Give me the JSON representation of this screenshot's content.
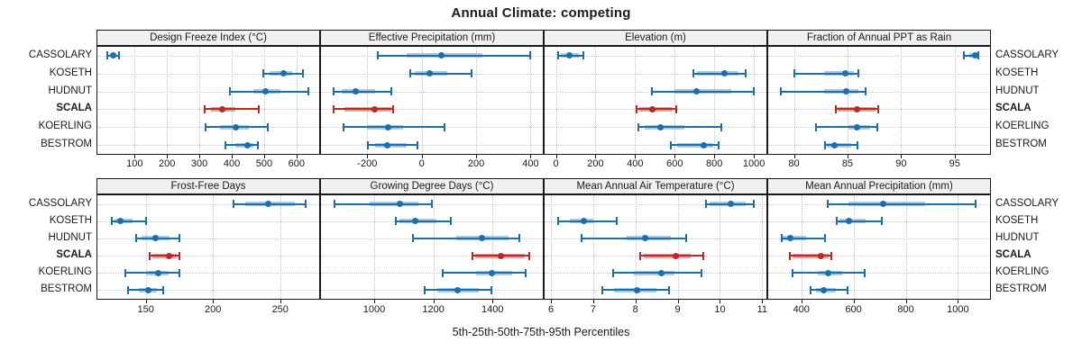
{
  "title": "Annual Climate: competing",
  "xlabel": "5th-25th-50th-75th-95th Percentiles",
  "colors": {
    "normal": "#1c6fad",
    "normal_band": "#a9cbe3",
    "highlight": "#bf2626",
    "highlight_band": "#dda4a2",
    "strip_bg": "#f0f0f0",
    "grid": "#c6c6c6",
    "border": "#1a1a1a"
  },
  "chart_data": {
    "type": "dotplot-percentiles",
    "percentile_labels": [
      "5th",
      "25th",
      "50th",
      "75th",
      "95th"
    ],
    "sites": [
      "CASSOLARY",
      "KOSETH",
      "HUDNUT",
      "SCALA",
      "KOERLING",
      "BESTROM"
    ],
    "highlight_site": "SCALA",
    "grid": "dotted",
    "layout": {
      "rows": 2,
      "cols": 4
    },
    "panels": [
      {
        "title": "Design Freeze Index (°C)",
        "row": 0,
        "col": 0,
        "xlim": [
          -15,
          670
        ],
        "ticks": [
          100,
          200,
          300,
          400,
          500,
          600
        ],
        "series": [
          {
            "site": "CASSOLARY",
            "p": [
              17,
              26,
              34,
              44,
              53
            ]
          },
          {
            "site": "KOSETH",
            "p": [
              498,
              517,
              559,
              586,
              619
            ]
          },
          {
            "site": "HUDNUT",
            "p": [
              393,
              467,
              505,
              550,
              636
            ]
          },
          {
            "site": "SCALA",
            "p": [
              316,
              335,
              371,
              410,
              484
            ]
          },
          {
            "site": "KOERLING",
            "p": [
              318,
              365,
              412,
              454,
              512
            ]
          },
          {
            "site": "BESTROM",
            "p": [
              381,
              411,
              448,
              467,
              480
            ]
          }
        ]
      },
      {
        "title": "Effective Precipitation (mm)",
        "row": 0,
        "col": 1,
        "xlim": [
          -370,
          445
        ],
        "ticks": [
          -200,
          0,
          200,
          400
        ],
        "series": [
          {
            "site": "CASSOLARY",
            "p": [
              -162,
              -54,
              73,
              223,
              398
            ]
          },
          {
            "site": "KOSETH",
            "p": [
              -43,
              -25,
              29,
              95,
              182
            ]
          },
          {
            "site": "HUDNUT",
            "p": [
              -324,
              -293,
              -243,
              -171,
              -110
            ]
          },
          {
            "site": "SCALA",
            "p": [
              -324,
              -285,
              -173,
              -112,
              -104
            ]
          },
          {
            "site": "KOERLING",
            "p": [
              -288,
              -200,
              -123,
              -70,
              84
            ]
          },
          {
            "site": "BESTROM",
            "p": [
              -199,
              -170,
              -127,
              -55,
              -16
            ]
          }
        ]
      },
      {
        "title": "Elevation (m)",
        "row": 0,
        "col": 2,
        "xlim": [
          -57,
          1063
        ],
        "ticks": [
          0,
          200,
          400,
          600,
          800,
          1000
        ],
        "series": [
          {
            "site": "CASSOLARY",
            "p": [
              10,
              26,
              68,
              116,
              139
            ]
          },
          {
            "site": "KOSETH",
            "p": [
              694,
              712,
              851,
              923,
              958
            ]
          },
          {
            "site": "HUDNUT",
            "p": [
              486,
              599,
              712,
              885,
              999
            ]
          },
          {
            "site": "SCALA",
            "p": [
              407,
              420,
              489,
              590,
              606
            ]
          },
          {
            "site": "KOERLING",
            "p": [
              418,
              450,
              528,
              650,
              837
            ]
          },
          {
            "site": "BESTROM",
            "p": [
              579,
              614,
              745,
              795,
              820
            ]
          }
        ]
      },
      {
        "title": "Fraction of Annual PPT as Rain",
        "row": 0,
        "col": 3,
        "xlim": [
          77.6,
          98.3
        ],
        "ticks": [
          80,
          85,
          90,
          95
        ],
        "series": [
          {
            "site": "CASSOLARY",
            "p": [
              95.9,
              96.4,
              96.9,
              97.1,
              97.2
            ]
          },
          {
            "site": "KOSETH",
            "p": [
              80.0,
              82.8,
              84.8,
              85.6,
              86.0
            ]
          },
          {
            "site": "HUDNUT",
            "p": [
              78.8,
              82.8,
              84.9,
              86.0,
              86.7
            ]
          },
          {
            "site": "SCALA",
            "p": [
              83.9,
              84.1,
              85.9,
              87.6,
              87.9
            ]
          },
          {
            "site": "KOERLING",
            "p": [
              82.1,
              85.1,
              85.9,
              87.1,
              87.8
            ]
          },
          {
            "site": "BESTROM",
            "p": [
              82.9,
              83.1,
              83.8,
              85.3,
              85.9
            ]
          }
        ]
      },
      {
        "title": "Frost-Free Days",
        "row": 1,
        "col": 0,
        "xlim": [
          114,
          279
        ],
        "ticks": [
          150,
          200,
          250
        ],
        "series": [
          {
            "site": "CASSOLARY",
            "p": [
              215,
              224,
              241,
              261,
              269
            ]
          },
          {
            "site": "KOSETH",
            "p": [
              125,
              127,
              131,
              140,
              150
            ]
          },
          {
            "site": "HUDNUT",
            "p": [
              143,
              147,
              157,
              168,
              175
            ]
          },
          {
            "site": "SCALA",
            "p": [
              153,
              155,
              167,
              173,
              175
            ]
          },
          {
            "site": "KOERLING",
            "p": [
              135,
              150,
              159,
              167,
              175
            ]
          },
          {
            "site": "BESTROM",
            "p": [
              137,
              145,
              152,
              158,
              163
            ]
          }
        ]
      },
      {
        "title": "Growing Degree Days (°C)",
        "row": 1,
        "col": 1,
        "xlim": [
          820,
          1570
        ],
        "ticks": [
          1000,
          1200,
          1400
        ],
        "series": [
          {
            "site": "CASSOLARY",
            "p": [
              867,
              985,
              1086,
              1150,
              1194
            ]
          },
          {
            "site": "KOSETH",
            "p": [
              1074,
              1085,
              1139,
              1210,
              1260
            ]
          },
          {
            "site": "HUDNUT",
            "p": [
              1131,
              1278,
              1364,
              1455,
              1490
            ]
          },
          {
            "site": "SCALA",
            "p": [
              1333,
              1340,
              1429,
              1508,
              1525
            ]
          },
          {
            "site": "KOERLING",
            "p": [
              1232,
              1343,
              1399,
              1465,
              1513
            ]
          },
          {
            "site": "BESTROM",
            "p": [
              1172,
              1212,
              1283,
              1354,
              1396
            ]
          }
        ]
      },
      {
        "title": "Mean Annual Air Temperature (°C)",
        "row": 1,
        "col": 2,
        "xlim": [
          5.85,
          11.1
        ],
        "ticks": [
          6,
          7,
          8,
          9,
          10,
          11
        ],
        "series": [
          {
            "site": "CASSOLARY",
            "p": [
              9.68,
              9.75,
              10.26,
              10.6,
              10.8
            ]
          },
          {
            "site": "KOSETH",
            "p": [
              6.18,
              6.45,
              6.77,
              7.0,
              7.55
            ]
          },
          {
            "site": "HUDNUT",
            "p": [
              6.72,
              7.8,
              8.23,
              8.83,
              9.19
            ]
          },
          {
            "site": "SCALA",
            "p": [
              8.11,
              8.2,
              8.95,
              9.3,
              9.6
            ]
          },
          {
            "site": "KOERLING",
            "p": [
              7.48,
              7.97,
              8.62,
              8.93,
              9.57
            ]
          },
          {
            "site": "BESTROM",
            "p": [
              7.22,
              7.5,
              8.03,
              8.5,
              8.8
            ]
          }
        ]
      },
      {
        "title": "Mean Annual Precipitation (mm)",
        "row": 1,
        "col": 3,
        "xlim": [
          273,
          1123
        ],
        "ticks": [
          400,
          600,
          800,
          1000
        ],
        "series": [
          {
            "site": "CASSOLARY",
            "p": [
              502,
              580,
              713,
              875,
              1068
            ]
          },
          {
            "site": "KOSETH",
            "p": [
              535,
              545,
              582,
              647,
              708
            ]
          },
          {
            "site": "HUDNUT",
            "p": [
              324,
              330,
              358,
              418,
              489
            ]
          },
          {
            "site": "SCALA",
            "p": [
              355,
              365,
              476,
              506,
              516
            ]
          },
          {
            "site": "KOERLING",
            "p": [
              365,
              464,
              502,
              555,
              644
            ]
          },
          {
            "site": "BESTROM",
            "p": [
              435,
              456,
              487,
              533,
              576
            ]
          }
        ]
      }
    ]
  }
}
